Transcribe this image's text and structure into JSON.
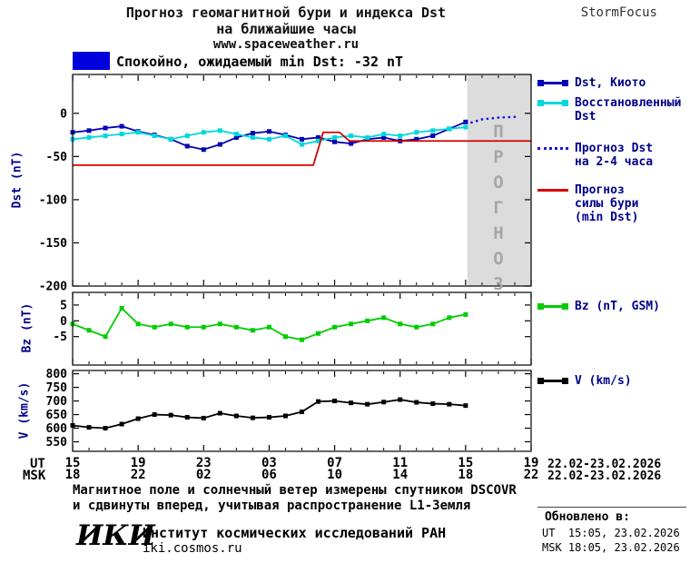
{
  "header": {
    "title_line1": "Прогноз геомагнитной бури и индекса Dst",
    "title_line2": "на ближайшие часы",
    "site": "www.spaceweather.ru",
    "brand": "StormFocus"
  },
  "status_banner": {
    "box_color": "#0000dd",
    "text": "Спокойно, ожидаемый min Dst: -32 nT"
  },
  "legend": {
    "dst_kyoto": "Dst, Киото",
    "restored_1": "Восстановленный",
    "restored_2": "Dst",
    "forecast_1": "Прогноз Dst",
    "forecast_2": "на 2-4 часа",
    "storm_1": "Прогноз",
    "storm_2": "силы бури",
    "storm_3": "(min Dst)",
    "bz": "Bz (nT, GSM)",
    "v": "V (km/s)"
  },
  "xaxis": {
    "ut_label": "UT",
    "msk_label": "MSK",
    "ut_values": [
      "15",
      "19",
      "23",
      "03",
      "07",
      "11",
      "15",
      "19"
    ],
    "msk_values": [
      "18",
      "22",
      "02",
      "06",
      "10",
      "14",
      "18",
      "22"
    ],
    "ut_date": "22.02-23.02.2026",
    "msk_date": "22.02-23.02.2026"
  },
  "footnote": {
    "line1": "Магнитное поле и солнечный ветер измерены спутником DSCOVR",
    "line2": "и сдвинуты вперед, учитывая распространение L1-Земля"
  },
  "institute": {
    "logo": "ИКИ",
    "name": "Институт космических исследований РАН",
    "url": "iki.cosmos.ru"
  },
  "updated": {
    "heading": "Обновлено в:",
    "ut": "UT  15:05, 23.02.2026",
    "msk": "MSK 18:05, 23.02.2026"
  },
  "chart_data": [
    {
      "type": "line",
      "ylabel": "Dst (nT)",
      "ylim": [
        45,
        -200
      ],
      "yticks": [
        0,
        -50,
        -100,
        -150,
        -200
      ],
      "xlim": [
        0,
        28
      ],
      "xticks_hours": [
        0,
        4,
        8,
        12,
        16,
        20,
        24,
        28
      ],
      "forecast_region": {
        "start_hour": 24.1,
        "label": "ПРОГНОЗ",
        "fill": "#dcdcdc"
      },
      "series": [
        {
          "name": "Dst, Киото",
          "color": "#0000b4",
          "marker": "square",
          "x": [
            0,
            1,
            2,
            3,
            4,
            5,
            6,
            7,
            8,
            9,
            10,
            11,
            12,
            13,
            14,
            15,
            16,
            17,
            18,
            19,
            20,
            21,
            22,
            23,
            24
          ],
          "y": [
            -22,
            -20,
            -17,
            -15,
            -21,
            -25,
            -30,
            -38,
            -42,
            -36,
            -28,
            -23,
            -21,
            -25,
            -30,
            -28,
            -33,
            -35,
            -30,
            -28,
            -32,
            -30,
            -26,
            -18,
            -10
          ]
        },
        {
          "name": "Восстановленный Dst",
          "color": "#00d8dc",
          "marker": "square",
          "x": [
            0,
            1,
            2,
            3,
            4,
            5,
            6,
            7,
            8,
            9,
            10,
            11,
            12,
            13,
            14,
            15,
            16,
            17,
            18,
            19,
            20,
            21,
            22,
            23,
            24
          ],
          "y": [
            -30,
            -28,
            -26,
            -24,
            -22,
            -26,
            -30,
            -26,
            -22,
            -20,
            -24,
            -28,
            -30,
            -26,
            -36,
            -32,
            -28,
            -26,
            -28,
            -24,
            -26,
            -22,
            -20,
            -18,
            -16
          ]
        },
        {
          "name": "Прогноз Dst на 2-4 часа",
          "color": "#1515e6",
          "style": "dotted",
          "x": [
            24.3,
            25,
            26,
            27.2
          ],
          "y": [
            -11,
            -7,
            -5,
            -4
          ]
        },
        {
          "name": "Прогноз силы бури (min Dst)",
          "color": "#d40000",
          "x": [
            0,
            14.7,
            15.3,
            16.3,
            16.9,
            28
          ],
          "y": [
            -60,
            -60,
            -22,
            -22,
            -32,
            -32
          ]
        }
      ]
    },
    {
      "type": "line",
      "ylabel": "Bz (nT)",
      "ylim": [
        9,
        -14
      ],
      "yticks": [
        5,
        0,
        -5
      ],
      "xlim": [
        0,
        28
      ],
      "xticks_hours": [
        0,
        4,
        8,
        12,
        16,
        20,
        24,
        28
      ],
      "series": [
        {
          "name": "Bz (nT, GSM)",
          "color": "#00cc00",
          "marker": "square",
          "x": [
            0,
            1,
            2,
            3,
            4,
            5,
            6,
            7,
            8,
            9,
            10,
            11,
            12,
            13,
            14,
            15,
            16,
            17,
            18,
            19,
            20,
            21,
            22,
            23,
            24
          ],
          "y": [
            -1,
            -3,
            -5,
            4,
            -1,
            -2,
            -1,
            -2,
            -2,
            -1,
            -2,
            -3,
            -2,
            -5,
            -6,
            -4,
            -2,
            -1,
            0,
            1,
            -1,
            -2,
            -1,
            1,
            2
          ]
        }
      ]
    },
    {
      "type": "line",
      "ylabel": "V (km/s)",
      "ylim": [
        812,
        515
      ],
      "yticks": [
        800,
        750,
        700,
        650,
        600,
        550
      ],
      "xlim": [
        0,
        28
      ],
      "xticks_hours": [
        0,
        4,
        8,
        12,
        16,
        20,
        24,
        28
      ],
      "series": [
        {
          "name": "V (km/s)",
          "color": "#000000",
          "marker": "square",
          "x": [
            0,
            1,
            2,
            3,
            4,
            5,
            6,
            7,
            8,
            9,
            10,
            11,
            12,
            13,
            14,
            15,
            16,
            17,
            18,
            19,
            20,
            21,
            22,
            23,
            24
          ],
          "y": [
            610,
            603,
            600,
            615,
            635,
            650,
            648,
            640,
            637,
            655,
            645,
            638,
            640,
            645,
            660,
            698,
            700,
            693,
            688,
            696,
            705,
            695,
            690,
            688,
            683
          ]
        }
      ]
    }
  ]
}
